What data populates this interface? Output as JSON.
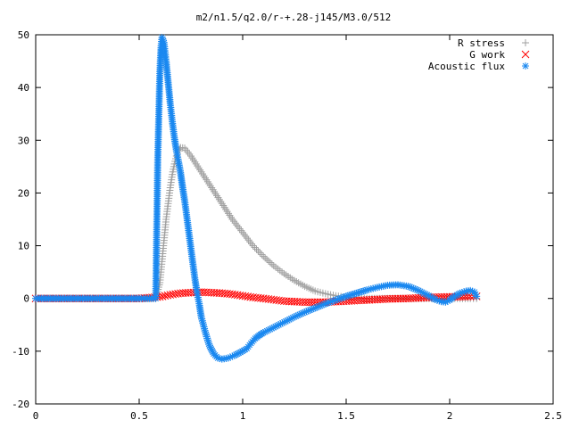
{
  "chart_data": {
    "type": "scatter",
    "title": "m2/n1.5/q2.0/r-+.28-j145/M3.0/512",
    "xlabel": "",
    "ylabel": "",
    "xlim": [
      0,
      2.5
    ],
    "ylim": [
      -20,
      50
    ],
    "xticks": [
      0,
      0.5,
      1,
      1.5,
      2,
      2.5
    ],
    "xtick_labels": [
      "0",
      "0.5",
      "1",
      "1.5",
      "2",
      "2.5"
    ],
    "yticks": [
      -20,
      -10,
      0,
      10,
      20,
      30,
      40,
      50
    ],
    "ytick_labels": [
      "-20",
      "-10",
      "0",
      "10",
      "20",
      "30",
      "40",
      "50"
    ],
    "grid": false,
    "legend_position": "top-right",
    "series": [
      {
        "name": "R stress",
        "marker": "plus",
        "color": "#a0a0a0",
        "points": [
          [
            0,
            0
          ],
          [
            0.1,
            0
          ],
          [
            0.2,
            0
          ],
          [
            0.3,
            0
          ],
          [
            0.4,
            0
          ],
          [
            0.5,
            0
          ],
          [
            0.58,
            0
          ],
          [
            0.6,
            3
          ],
          [
            0.61,
            7
          ],
          [
            0.62,
            11
          ],
          [
            0.63,
            15
          ],
          [
            0.64,
            18
          ],
          [
            0.65,
            21
          ],
          [
            0.66,
            23.5
          ],
          [
            0.67,
            25.5
          ],
          [
            0.68,
            27
          ],
          [
            0.69,
            28
          ],
          [
            0.7,
            28.6
          ],
          [
            0.72,
            28.5
          ],
          [
            0.75,
            27
          ],
          [
            0.8,
            24
          ],
          [
            0.85,
            21
          ],
          [
            0.9,
            18
          ],
          [
            0.95,
            15
          ],
          [
            1.0,
            12.5
          ],
          [
            1.05,
            10
          ],
          [
            1.1,
            8
          ],
          [
            1.15,
            6.2
          ],
          [
            1.2,
            4.7
          ],
          [
            1.25,
            3.4
          ],
          [
            1.3,
            2.3
          ],
          [
            1.35,
            1.4
          ],
          [
            1.4,
            0.9
          ],
          [
            1.45,
            0.5
          ],
          [
            1.5,
            0.2
          ],
          [
            1.6,
            0
          ],
          [
            1.7,
            0
          ],
          [
            1.8,
            0
          ],
          [
            1.9,
            0
          ],
          [
            2.0,
            0
          ],
          [
            2.1,
            0
          ],
          [
            2.13,
            0
          ]
        ]
      },
      {
        "name": "G work",
        "marker": "cross",
        "color": "#ff0000",
        "points": [
          [
            0,
            0
          ],
          [
            0.1,
            0
          ],
          [
            0.2,
            0
          ],
          [
            0.3,
            0
          ],
          [
            0.4,
            0
          ],
          [
            0.5,
            0
          ],
          [
            0.6,
            0.3
          ],
          [
            0.65,
            0.7
          ],
          [
            0.7,
            1.0
          ],
          [
            0.75,
            1.1
          ],
          [
            0.8,
            1.2
          ],
          [
            0.85,
            1.1
          ],
          [
            0.9,
            1.0
          ],
          [
            0.95,
            0.8
          ],
          [
            1.0,
            0.5
          ],
          [
            1.05,
            0.2
          ],
          [
            1.1,
            0
          ],
          [
            1.2,
            -0.5
          ],
          [
            1.3,
            -0.7
          ],
          [
            1.4,
            -0.7
          ],
          [
            1.5,
            -0.5
          ],
          [
            1.6,
            -0.3
          ],
          [
            1.7,
            -0.1
          ],
          [
            1.8,
            0
          ],
          [
            1.9,
            0.2
          ],
          [
            2.0,
            0.3
          ],
          [
            2.1,
            0.4
          ],
          [
            2.13,
            0.4
          ]
        ]
      },
      {
        "name": "Acoustic flux",
        "marker": "star",
        "color": "#1a88f0",
        "points": [
          [
            0,
            0
          ],
          [
            0.1,
            0
          ],
          [
            0.2,
            0
          ],
          [
            0.3,
            0
          ],
          [
            0.4,
            0
          ],
          [
            0.5,
            0
          ],
          [
            0.58,
            0
          ],
          [
            0.59,
            26.8
          ],
          [
            0.6,
            43
          ],
          [
            0.605,
            47.5
          ],
          [
            0.61,
            49.5
          ],
          [
            0.62,
            48.5
          ],
          [
            0.63,
            45
          ],
          [
            0.64,
            41
          ],
          [
            0.65,
            37
          ],
          [
            0.66,
            33.5
          ],
          [
            0.67,
            30.5
          ],
          [
            0.68,
            28
          ],
          [
            0.69,
            26
          ],
          [
            0.7,
            23.8
          ],
          [
            0.71,
            21
          ],
          [
            0.72,
            18.5
          ],
          [
            0.73,
            15.5
          ],
          [
            0.74,
            12.5
          ],
          [
            0.75,
            9.5
          ],
          [
            0.76,
            6.5
          ],
          [
            0.77,
            3.5
          ],
          [
            0.78,
            1
          ],
          [
            0.79,
            -1
          ],
          [
            0.8,
            -3.5
          ],
          [
            0.82,
            -6.5
          ],
          [
            0.84,
            -9
          ],
          [
            0.86,
            -10.5
          ],
          [
            0.88,
            -11.3
          ],
          [
            0.9,
            -11.5
          ],
          [
            0.93,
            -11.3
          ],
          [
            0.96,
            -10.8
          ],
          [
            0.99,
            -10.2
          ],
          [
            1.02,
            -9.5
          ],
          [
            1.04,
            -8.5
          ],
          [
            1.06,
            -7.6
          ],
          [
            1.08,
            -7
          ],
          [
            1.1,
            -6.5
          ],
          [
            1.15,
            -5.5
          ],
          [
            1.2,
            -4.5
          ],
          [
            1.25,
            -3.5
          ],
          [
            1.3,
            -2.6
          ],
          [
            1.35,
            -1.8
          ],
          [
            1.4,
            -1
          ],
          [
            1.45,
            -0.3
          ],
          [
            1.5,
            0.4
          ],
          [
            1.55,
            1.0
          ],
          [
            1.6,
            1.6
          ],
          [
            1.65,
            2.1
          ],
          [
            1.7,
            2.5
          ],
          [
            1.75,
            2.6
          ],
          [
            1.8,
            2.3
          ],
          [
            1.85,
            1.5
          ],
          [
            1.9,
            0.5
          ],
          [
            1.93,
            -0.2
          ],
          [
            1.96,
            -0.6
          ],
          [
            1.98,
            -0.7
          ],
          [
            2.0,
            -0.3
          ],
          [
            2.02,
            0.3
          ],
          [
            2.05,
            1
          ],
          [
            2.08,
            1.4
          ],
          [
            2.1,
            1.5
          ],
          [
            2.12,
            1.2
          ],
          [
            2.13,
            0.4
          ]
        ]
      }
    ]
  }
}
